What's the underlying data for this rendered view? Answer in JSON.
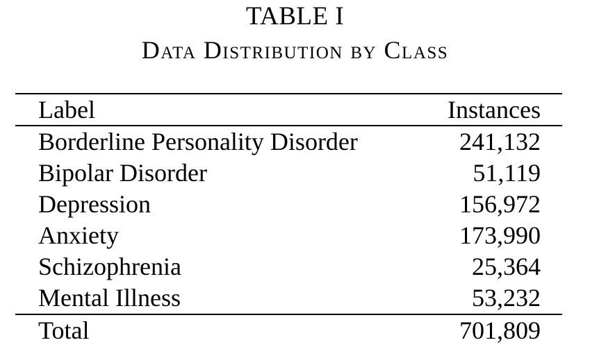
{
  "caption": {
    "number": "TABLE I",
    "title": "Data Distribution by Class"
  },
  "table": {
    "columns": [
      "Label",
      "Instances"
    ],
    "rows": [
      {
        "label": "Borderline Personality Disorder",
        "instances": "241,132"
      },
      {
        "label": "Bipolar Disorder",
        "instances": "51,119"
      },
      {
        "label": "Depression",
        "instances": "156,972"
      },
      {
        "label": "Anxiety",
        "instances": "173,990"
      },
      {
        "label": "Schizophrenia",
        "instances": "25,364"
      },
      {
        "label": "Mental Illness",
        "instances": "53,232"
      }
    ],
    "total": {
      "label": "Total",
      "instances": "701,809"
    }
  }
}
